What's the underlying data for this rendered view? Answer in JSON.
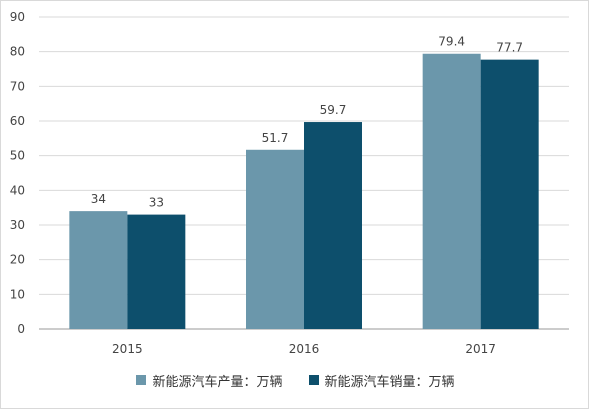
{
  "chart_data": {
    "type": "bar",
    "categories": [
      "2015",
      "2016",
      "2017"
    ],
    "series": [
      {
        "name": "新能源汽车产量：万辆",
        "values": [
          34,
          51.7,
          79.4
        ],
        "color": "#6b97ab"
      },
      {
        "name": "新能源汽车销量：万辆",
        "values": [
          33,
          59.7,
          77.7
        ],
        "color": "#0d4f6c"
      }
    ],
    "data_labels": [
      [
        "34",
        "51.7",
        "79.4"
      ],
      [
        "33",
        "59.7",
        "77.7"
      ]
    ],
    "ylim": [
      0,
      90
    ],
    "yticks": [
      "0",
      "10",
      "20",
      "30",
      "40",
      "50",
      "60",
      "70",
      "80",
      "90"
    ],
    "grid": true,
    "legend_position": "bottom"
  }
}
